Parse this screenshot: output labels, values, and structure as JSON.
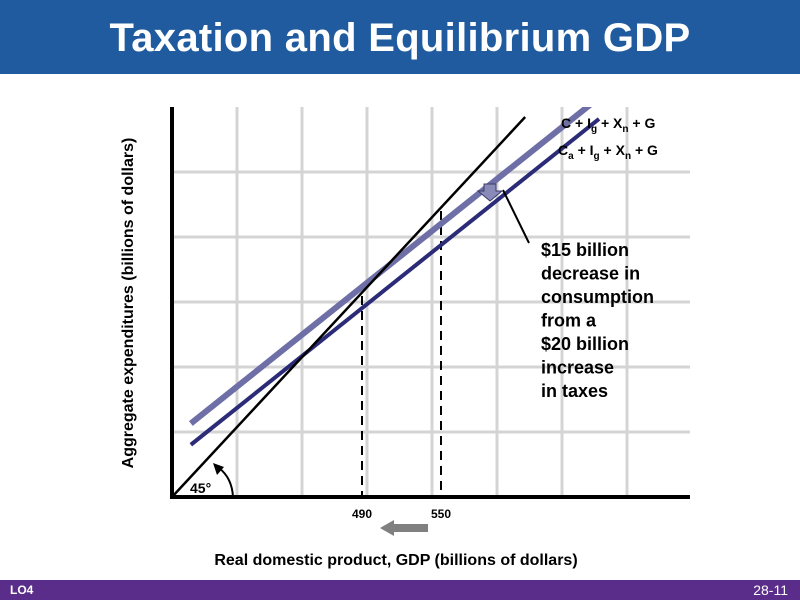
{
  "header": {
    "title": "Taxation and Equilibrium GDP"
  },
  "footer": {
    "left": "LO4",
    "right": "28-11"
  },
  "colors": {
    "title_bar": "#1f5b9e",
    "footer_bar": "#5b2d8a",
    "original_ae_line": "#6e6fa6",
    "new_ae_line": "#2b2b78",
    "shift_arrow": "#808080"
  },
  "icons": {
    "shift_arrow": "left-arrow-icon",
    "down_arrow": "down-arrow-icon",
    "angle_arc": "arc-arrow-icon"
  },
  "chart_data": {
    "type": "line",
    "title": "",
    "xlabel": "Real domestic product, GDP (billions of dollars)",
    "ylabel": "Aggregate expenditures (billions of dollars)",
    "x_tick_labels": [
      {
        "value": 490,
        "label": "490"
      },
      {
        "value": 550,
        "label": "550"
      }
    ],
    "grid": true,
    "series": [
      {
        "name": "C + Ig + Xn + G",
        "x": [
          360,
          670
        ],
        "y": [
          400,
          630
        ]
      },
      {
        "name": "Ca + Ig + Xn + G",
        "x": [
          360,
          670
        ],
        "y": [
          385,
          615
        ]
      },
      {
        "name": "45°",
        "x": [
          340,
          660
        ],
        "y": [
          340,
          660
        ]
      }
    ],
    "equilibria": [
      {
        "x": 490,
        "y": 490,
        "label": "490"
      },
      {
        "x": 550,
        "y": 550,
        "label": "550"
      }
    ],
    "annotations": [
      "$15 billion",
      "decrease in",
      "consumption",
      "from a",
      "$20 billion",
      "increase",
      "in taxes"
    ],
    "angle_label": "45°"
  }
}
